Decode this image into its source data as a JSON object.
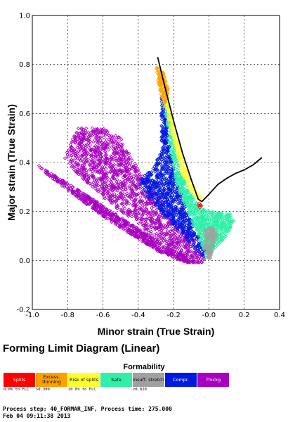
{
  "chart_data": {
    "type": "scatter",
    "title": "Forming Limit Diagram (Linear)",
    "xlabel": "Minor strain (True Strain)",
    "ylabel": "Major strain (True Strain)",
    "xlim": [
      -1.0,
      0.4
    ],
    "ylim": [
      -0.2,
      1.0
    ],
    "xticks": [
      "-1.0",
      "-0.8",
      "-0.6",
      "-0.4",
      "-0.2",
      "-0.0",
      "0.2",
      "0.4"
    ],
    "yticks": [
      "-0.2",
      "0.0",
      "0.2",
      "0.4",
      "0.6",
      "0.8",
      "1.0"
    ],
    "grid": true,
    "flc": [
      {
        "x": -0.29,
        "y": 0.83
      },
      {
        "x": -0.25,
        "y": 0.71
      },
      {
        "x": -0.2,
        "y": 0.57
      },
      {
        "x": -0.15,
        "y": 0.44
      },
      {
        "x": -0.1,
        "y": 0.33
      },
      {
        "x": -0.06,
        "y": 0.25
      },
      {
        "x": -0.04,
        "y": 0.24
      },
      {
        "x": 0.0,
        "y": 0.27
      },
      {
        "x": 0.05,
        "y": 0.31
      },
      {
        "x": 0.1,
        "y": 0.335
      },
      {
        "x": 0.15,
        "y": 0.355
      },
      {
        "x": 0.2,
        "y": 0.37
      },
      {
        "x": 0.25,
        "y": 0.39
      },
      {
        "x": 0.3,
        "y": 0.42
      }
    ],
    "series": [
      {
        "name": "Thickg",
        "color": "#a800c0",
        "marker": "diamond",
        "regions": [
          {
            "polygon": [
              [
                -0.97,
                0.39
              ],
              [
                -0.7,
                0.27
              ],
              [
                -0.4,
                0.13
              ],
              [
                -0.2,
                0.04
              ],
              [
                -0.05,
                -0.01
              ],
              [
                -0.12,
                -0.01
              ],
              [
                -0.3,
                0.04
              ],
              [
                -0.6,
                0.18
              ],
              [
                -0.9,
                0.34
              ]
            ],
            "count": 700
          },
          {
            "polygon": [
              [
                -0.8,
                0.46
              ],
              [
                -0.74,
                0.54
              ],
              [
                -0.62,
                0.55
              ],
              [
                -0.5,
                0.5
              ],
              [
                -0.38,
                0.35
              ],
              [
                -0.25,
                0.22
              ],
              [
                -0.1,
                0.1
              ],
              [
                -0.02,
                0.01
              ],
              [
                -0.04,
                -0.01
              ],
              [
                -0.12,
                0.01
              ],
              [
                -0.28,
                0.08
              ],
              [
                -0.5,
                0.2
              ],
              [
                -0.72,
                0.33
              ],
              [
                -0.82,
                0.42
              ]
            ],
            "count": 1400
          }
        ]
      },
      {
        "name": "Compr.",
        "color": "#0018e0",
        "marker": "diamond",
        "regions": [
          {
            "polygon": [
              [
                -0.27,
                0.67
              ],
              [
                -0.24,
                0.6
              ],
              [
                -0.22,
                0.45
              ],
              [
                -0.18,
                0.32
              ],
              [
                -0.12,
                0.2
              ],
              [
                -0.06,
                0.1
              ],
              [
                -0.02,
                0.04
              ],
              [
                -0.03,
                0.01
              ],
              [
                -0.12,
                0.08
              ],
              [
                -0.22,
                0.16
              ],
              [
                -0.35,
                0.26
              ],
              [
                -0.4,
                0.33
              ],
              [
                -0.32,
                0.37
              ],
              [
                -0.27,
                0.45
              ]
            ],
            "count": 900
          }
        ]
      },
      {
        "name": "Safe",
        "color": "#30f0a8",
        "marker": "diamond",
        "regions": [
          {
            "polygon": [
              [
                -0.27,
                0.66
              ],
              [
                -0.22,
                0.58
              ],
              [
                -0.19,
                0.45
              ],
              [
                -0.16,
                0.36
              ],
              [
                -0.1,
                0.27
              ],
              [
                -0.05,
                0.21
              ],
              [
                0.03,
                0.2
              ],
              [
                0.12,
                0.19
              ],
              [
                0.14,
                0.16
              ],
              [
                0.1,
                0.1
              ],
              [
                0.02,
                0.04
              ],
              [
                -0.01,
                0.01
              ],
              [
                -0.03,
                0.04
              ],
              [
                -0.06,
                0.1
              ],
              [
                -0.12,
                0.2
              ],
              [
                -0.18,
                0.3
              ],
              [
                -0.22,
                0.45
              ],
              [
                -0.24,
                0.58
              ]
            ],
            "count": 900
          }
        ]
      },
      {
        "name": "Insuff. stretch",
        "color": "#a0a0a0",
        "marker": "diamond",
        "regions": [
          {
            "polygon": [
              [
                -0.03,
                0.12
              ],
              [
                0.02,
                0.14
              ],
              [
                0.05,
                0.1
              ],
              [
                0.02,
                0.04
              ],
              [
                0.0,
                -0.01
              ],
              [
                -0.02,
                0.02
              ]
            ],
            "count": 120
          }
        ]
      },
      {
        "name": "Risk of splits",
        "color": "#ffff30",
        "marker": "diamond",
        "regions": [
          {
            "polygon": [
              [
                -0.3,
                0.78
              ],
              [
                -0.24,
                0.7
              ],
              [
                -0.2,
                0.56
              ],
              [
                -0.15,
                0.43
              ],
              [
                -0.1,
                0.32
              ],
              [
                -0.05,
                0.26
              ],
              [
                -0.02,
                0.25
              ],
              [
                -0.08,
                0.26
              ],
              [
                -0.14,
                0.33
              ],
              [
                -0.18,
                0.43
              ],
              [
                -0.22,
                0.55
              ],
              [
                -0.26,
                0.66
              ]
            ],
            "count": 260
          }
        ]
      },
      {
        "name": "Excess. thinning",
        "color": "#ffa000",
        "marker": "diamond",
        "regions": [
          {
            "polygon": [
              [
                -0.3,
                0.79
              ],
              [
                -0.26,
                0.78
              ],
              [
                -0.23,
                0.7
              ],
              [
                -0.25,
                0.61
              ],
              [
                -0.27,
                0.67
              ],
              [
                -0.29,
                0.73
              ]
            ],
            "count": 120
          }
        ]
      },
      {
        "name": "Splits",
        "color": "#ff0000",
        "marker": "diamond",
        "regions": [
          {
            "polygon": [
              [
                -0.075,
                0.23
              ],
              [
                -0.05,
                0.24
              ],
              [
                -0.035,
                0.23
              ],
              [
                -0.05,
                0.215
              ]
            ],
            "count": 6
          }
        ]
      }
    ]
  },
  "legend": {
    "title": "Formability",
    "items": [
      {
        "label": "Splits",
        "color": "#ff0000",
        "text_color": "#ffffff",
        "note": "0.0% to FLC"
      },
      {
        "label": "Excess. thinning",
        "color": "#ffa000",
        "text_color": "#000000",
        "note": ">0.300"
      },
      {
        "label": "Risk of splits",
        "color": "#ffff30",
        "text_color": "#000000",
        "note": "20.0% to FLC"
      },
      {
        "label": "Safe",
        "color": "#30f0a8",
        "text_color": "#000000",
        "note": ""
      },
      {
        "label": "Insuff. stretch",
        "color": "#a0a0a0",
        "text_color": "#000000",
        "note": "<0.020"
      },
      {
        "label": "Compr.",
        "color": "#0018e0",
        "text_color": "#ffffff",
        "note": ""
      },
      {
        "label": "Thickg",
        "color": "#a800c0",
        "text_color": "#ffffff",
        "note": ""
      }
    ]
  },
  "footer": {
    "process_line": "Process step: 40_FORMAR_INF, Process time: 275.000",
    "date_line": "Feb 04 09:11:38 2013"
  }
}
